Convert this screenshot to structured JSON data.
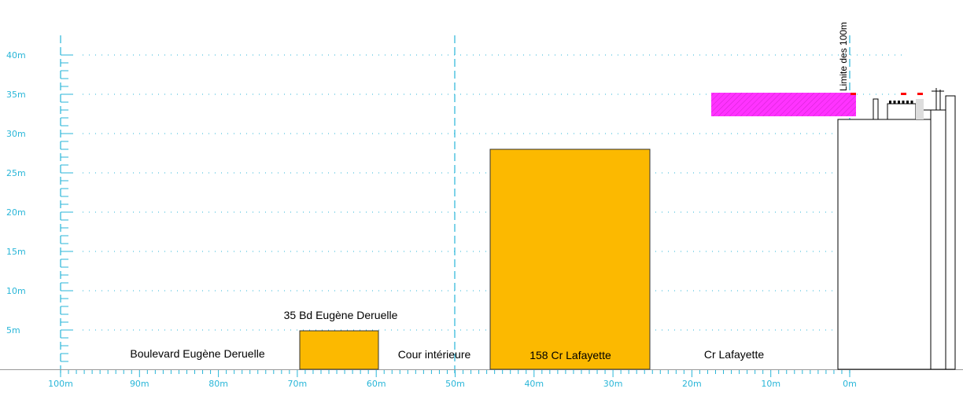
{
  "y_axis": {
    "labels": [
      "5m",
      "10m",
      "15m",
      "20m",
      "25m",
      "30m",
      "35m",
      "40m"
    ]
  },
  "x_axis": {
    "labels": [
      "100m",
      "90m",
      "80m",
      "70m",
      "60m",
      "50m",
      "40m",
      "30m",
      "20m",
      "10m",
      "0m"
    ]
  },
  "annotations": {
    "small_building": "35 Bd Eugène Deruelle",
    "left_street": "Boulevard Eugène Deruelle",
    "courtyard": "Cour intérieure",
    "large_building": "158 Cr Lafayette",
    "right_street": "Cr Lafayette",
    "limit": "Limite des 100m"
  }
}
